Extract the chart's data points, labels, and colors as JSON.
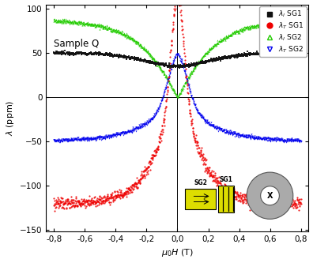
{
  "title": "Sample Q",
  "xlabel": "$\\mu_0H$ (T)",
  "ylabel": "$\\lambda$ (ppm)",
  "xlim": [
    -0.85,
    0.85
  ],
  "ylim": [
    -152,
    105
  ],
  "yticks": [
    -150,
    -100,
    -50,
    0,
    50,
    100
  ],
  "xticks": [
    -0.8,
    -0.6,
    -0.4,
    -0.2,
    0.0,
    0.2,
    0.4,
    0.6,
    0.8
  ],
  "xtick_labels": [
    "-0,8",
    "-0,6",
    "-0,4",
    "-0,2",
    "0,0",
    "0,2",
    "0,4",
    "0,6",
    "0,8"
  ],
  "color_black": "#111111",
  "color_red": "#ee0000",
  "color_green": "#22cc00",
  "color_blue": "#0000ee",
  "bg_color": "#ffffff"
}
